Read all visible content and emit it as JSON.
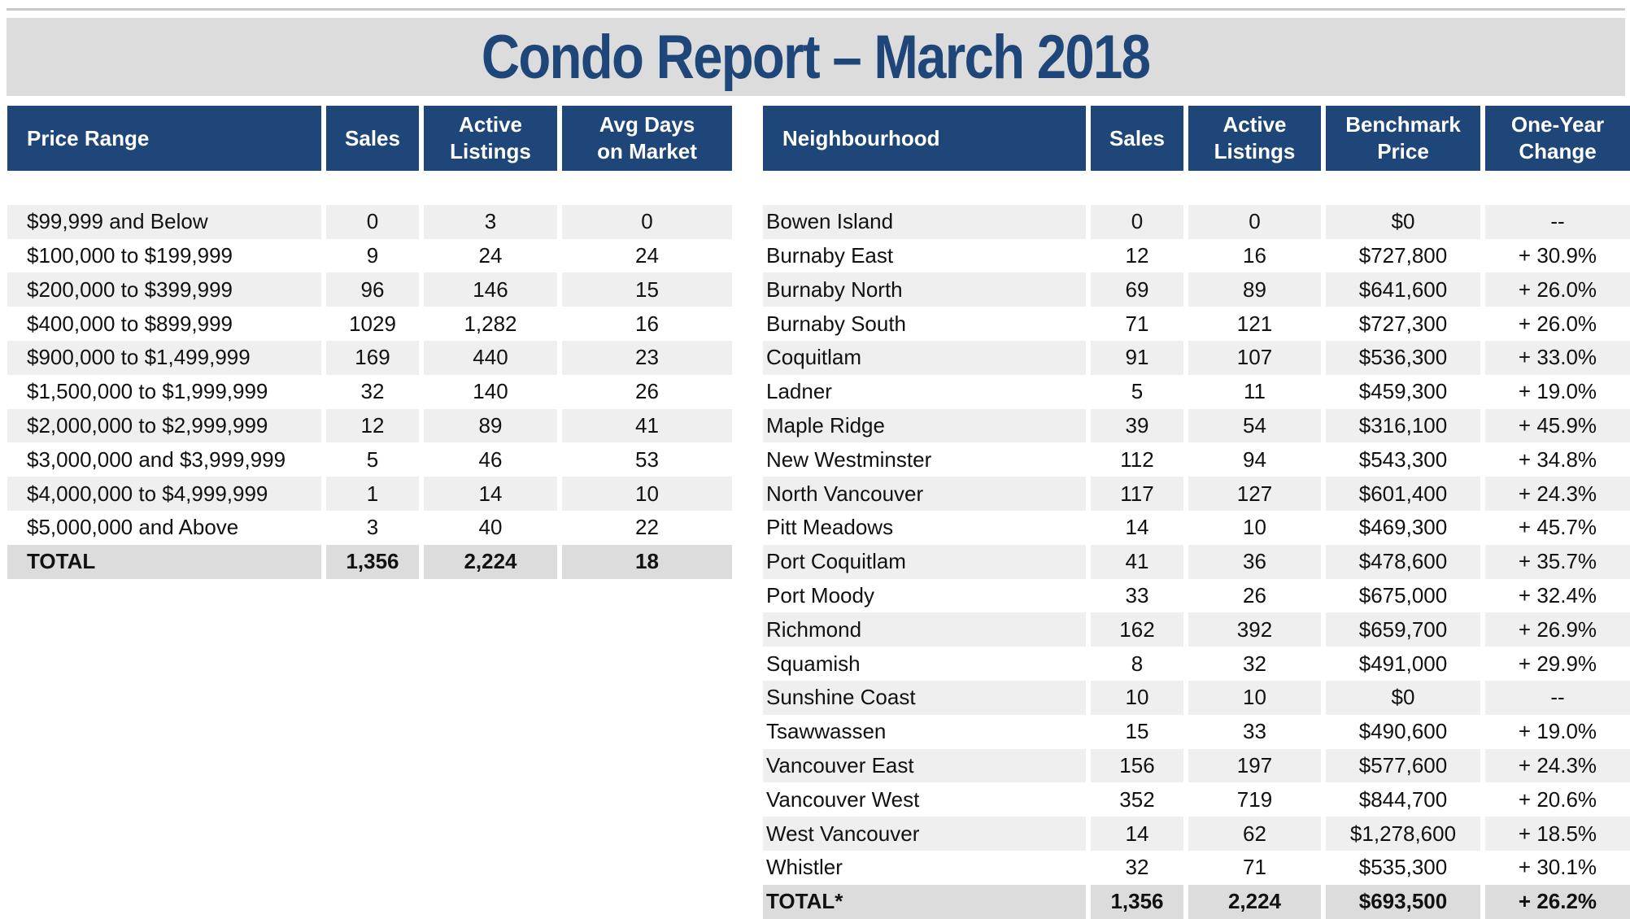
{
  "title": "Condo Report – March 2018",
  "price_table": {
    "headers": [
      "Price Range",
      "Sales",
      "Active\nListings",
      "Avg Days\non Market"
    ],
    "rows": [
      [
        "$99,999 and Below",
        "0",
        "3",
        "0"
      ],
      [
        "$100,000 to $199,999",
        "9",
        "24",
        "24"
      ],
      [
        "$200,000 to $399,999",
        "96",
        "146",
        "15"
      ],
      [
        "$400,000 to $899,999",
        "1029",
        "1,282",
        "16"
      ],
      [
        "$900,000 to $1,499,999",
        "169",
        "440",
        "23"
      ],
      [
        "$1,500,000 to $1,999,999",
        "32",
        "140",
        "26"
      ],
      [
        "$2,000,000 to $2,999,999",
        "12",
        "89",
        "41"
      ],
      [
        "$3,000,000 and $3,999,999",
        "5",
        "46",
        "53"
      ],
      [
        "$4,000,000 to $4,999,999",
        "1",
        "14",
        "10"
      ],
      [
        "$5,000,000 and Above",
        "3",
        "40",
        "22"
      ]
    ],
    "total": [
      "TOTAL",
      "1,356",
      "2,224",
      "18"
    ]
  },
  "hood_table": {
    "headers": [
      "Neighbourhood",
      "Sales",
      "Active\nListings",
      "Benchmark\nPrice",
      "One-Year\nChange"
    ],
    "rows": [
      [
        "Bowen Island",
        "0",
        "0",
        "$0",
        "--"
      ],
      [
        "Burnaby East",
        "12",
        "16",
        "$727,800",
        "+ 30.9%"
      ],
      [
        "Burnaby North",
        "69",
        "89",
        "$641,600",
        "+ 26.0%"
      ],
      [
        "Burnaby South",
        "71",
        "121",
        "$727,300",
        "+ 26.0%"
      ],
      [
        "Coquitlam",
        "91",
        "107",
        "$536,300",
        "+ 33.0%"
      ],
      [
        "Ladner",
        "5",
        "11",
        "$459,300",
        "+ 19.0%"
      ],
      [
        "Maple Ridge",
        "39",
        "54",
        "$316,100",
        "+ 45.9%"
      ],
      [
        "New Westminster",
        "112",
        "94",
        "$543,300",
        "+ 34.8%"
      ],
      [
        "North Vancouver",
        "117",
        "127",
        "$601,400",
        "+ 24.3%"
      ],
      [
        "Pitt Meadows",
        "14",
        "10",
        "$469,300",
        "+ 45.7%"
      ],
      [
        "Port Coquitlam",
        "41",
        "36",
        "$478,600",
        "+ 35.7%"
      ],
      [
        "Port Moody",
        "33",
        "26",
        "$675,000",
        "+ 32.4%"
      ],
      [
        "Richmond",
        "162",
        "392",
        "$659,700",
        "+ 26.9%"
      ],
      [
        "Squamish",
        "8",
        "32",
        "$491,000",
        "+ 29.9%"
      ],
      [
        "Sunshine Coast",
        "10",
        "10",
        "$0",
        "--"
      ],
      [
        "Tsawwassen",
        "15",
        "33",
        "$490,600",
        "+ 19.0%"
      ],
      [
        "Vancouver East",
        "156",
        "197",
        "$577,600",
        "+ 24.3%"
      ],
      [
        "Vancouver West",
        "352",
        "719",
        "$844,700",
        "+ 20.6%"
      ],
      [
        "West Vancouver",
        "14",
        "62",
        "$1,278,600",
        "+ 18.5%"
      ],
      [
        "Whistler",
        "32",
        "71",
        "$535,300",
        "+ 30.1%"
      ]
    ],
    "total": [
      "TOTAL*",
      "1,356",
      "2,224",
      "$693,500",
      "+ 26.2%"
    ]
  }
}
